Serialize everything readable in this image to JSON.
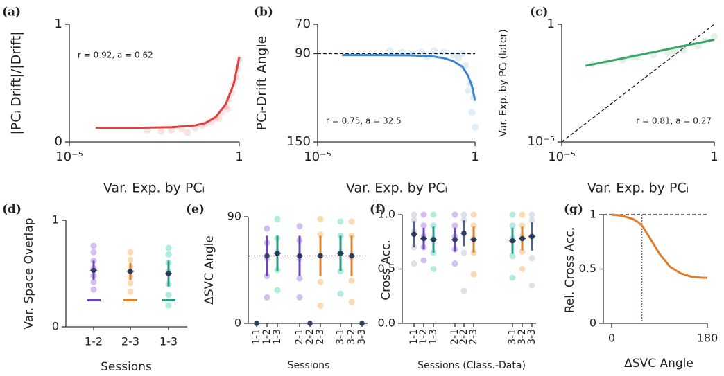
{
  "chart_data": [
    {
      "type": "scatter-fit",
      "panel": "(a)",
      "ylabel": "|PCᵢ Drift|/|Drift|",
      "xlabel": "Var. Exp. by PCᵢ",
      "annotation": "r = 0.92, a = 0.62",
      "color": "#e0403f",
      "xscale": "log",
      "xlim": [
        1e-05,
        1
      ],
      "xticks": [
        {
          "value": 1e-05,
          "label": "10⁻⁵"
        },
        1
      ],
      "ylim": [
        0,
        1
      ],
      "yticks": [
        0,
        1
      ],
      "points": {
        "x": [
          0.002,
          0.005,
          0.01,
          0.02,
          0.05,
          0.08,
          0.1,
          0.15,
          0.2,
          0.3,
          0.4,
          0.5,
          0.6,
          0.7,
          0.8,
          0.9,
          1,
          0.03,
          0.25,
          0.45
        ],
        "y": [
          0.1,
          0.09,
          0.1,
          0.11,
          0.12,
          0.14,
          0.15,
          0.17,
          0.2,
          0.25,
          0.3,
          0.36,
          0.42,
          0.5,
          0.55,
          0.62,
          0.7,
          0.08,
          0.2,
          0.28
        ]
      },
      "fit": {
        "x": [
          6e-05,
          0.001,
          0.01,
          0.05,
          0.1,
          0.2,
          0.4,
          0.7,
          1
        ],
        "y": [
          0.12,
          0.12,
          0.125,
          0.14,
          0.16,
          0.21,
          0.32,
          0.5,
          0.72
        ]
      }
    },
    {
      "type": "scatter-fit",
      "panel": "(b)",
      "ylabel": "PCᵢ-Drift Angle",
      "xlabel": "Var. Exp. by PCᵢ",
      "annotation": "r = 0.75, a = 32.5",
      "color": "#3a85d0",
      "xscale": "log",
      "xlim": [
        1e-05,
        1
      ],
      "xticks": [
        {
          "value": 1e-05,
          "label": "10⁻⁵"
        },
        1
      ],
      "ylim": [
        150,
        70
      ],
      "yticks": [
        70,
        90,
        150
      ],
      "reference_line": 90,
      "points": {
        "x": [
          0.002,
          0.005,
          0.01,
          0.02,
          0.05,
          0.1,
          0.2,
          0.3,
          0.5,
          0.7,
          0.9,
          1,
          0.8,
          0.6,
          0.4,
          0.03
        ],
        "y": [
          88,
          89,
          90,
          89,
          88,
          89,
          91,
          93,
          98,
          110,
          120,
          140,
          130,
          115,
          90,
          92
        ]
      },
      "fit": {
        "x": [
          6e-05,
          0.001,
          0.01,
          0.05,
          0.1,
          0.2,
          0.4,
          0.6,
          0.8,
          1
        ],
        "y": [
          91,
          91,
          91.2,
          92,
          93,
          95,
          99,
          105,
          112,
          122
        ]
      }
    },
    {
      "type": "scatter-fit",
      "panel": "(c)",
      "ylabel": "Var. Exp. by PCᵢ (later)",
      "xlabel": "Var. Exp. by PCᵢ",
      "annotation": "r = 0.81, a = 0.27",
      "color": "#3aa66a",
      "xscale": "log",
      "yscale": "log",
      "diagonal": true,
      "xlim": [
        1e-05,
        1
      ],
      "xticks": [
        {
          "value": 1e-05,
          "label": "10⁻⁵"
        },
        1
      ],
      "ylim": [
        1e-05,
        1
      ],
      "yticks": [
        {
          "value": 1e-05,
          "label": "10⁻⁵"
        },
        1
      ],
      "points": {
        "x": [
          0.0001,
          0.0003,
          0.001,
          0.003,
          0.01,
          0.03,
          0.1,
          0.3,
          1,
          0.5,
          0.05,
          0.002
        ],
        "y": [
          0.02,
          0.025,
          0.03,
          0.04,
          0.05,
          0.06,
          0.08,
          0.12,
          0.3,
          0.2,
          0.07,
          0.04
        ]
      },
      "fit": {
        "x": [
          6e-05,
          1
        ],
        "y": [
          0.017,
          0.22
        ]
      }
    },
    {
      "type": "errorbar",
      "panel": "(d)",
      "ylabel": "Var. Space Overlap",
      "xlabel": "Sessions",
      "ylim": [
        0,
        1
      ],
      "yticks": [
        0,
        1
      ],
      "categories": [
        "1-2",
        "2-3",
        "1-3"
      ],
      "values": [
        0.53,
        0.52,
        0.5
      ],
      "errors": [
        0.09,
        0.08,
        0.12
      ],
      "floor": [
        0.25,
        0.25,
        0.25
      ],
      "colors": [
        "#a77ee6",
        "#f5b86a",
        "#5fdcc0"
      ],
      "line_colors": [
        "#6a44b8",
        "#d9822b",
        "#2a9a84"
      ],
      "points": [
        [
          0.35,
          0.42,
          0.48,
          0.55,
          0.62,
          0.7,
          0.76
        ],
        [
          0.33,
          0.41,
          0.47,
          0.56,
          0.63,
          0.7
        ],
        [
          0.2,
          0.3,
          0.4,
          0.52,
          0.6,
          0.68,
          0.74
        ]
      ]
    },
    {
      "type": "errorbar",
      "panel": "(e)",
      "ylabel": "ΔSVC Angle",
      "xlabel": "Sessions",
      "ylim": [
        0,
        90
      ],
      "yticks": [
        0,
        90
      ],
      "reference_line": 57,
      "categories": [
        "1-1",
        "1-2",
        "1-3",
        "2-1",
        "2-2",
        "2-3",
        "3-1",
        "3-2",
        "3-3"
      ],
      "values": [
        0,
        57,
        59,
        57,
        0,
        57,
        59,
        57,
        0
      ],
      "errors": [
        0,
        17,
        15,
        17,
        0,
        17,
        15,
        17,
        0
      ],
      "colors": [
        "#2e3a5c",
        "#a77ee6",
        "#5fdcc0",
        "#a77ee6",
        "#2e3a5c",
        "#f5b86a",
        "#5fdcc0",
        "#f5b86a",
        "#2e3a5c"
      ],
      "line_colors": [
        "#2e3a5c",
        "#6a44b8",
        "#2a9a84",
        "#6a44b8",
        "#2e3a5c",
        "#d9822b",
        "#2a9a84",
        "#d9822b",
        "#2e3a5c"
      ],
      "points": [
        null,
        [
          22,
          40,
          55,
          68,
          80
        ],
        [
          28,
          45,
          60,
          72,
          88
        ],
        [
          22,
          38,
          55,
          70,
          82
        ],
        null,
        [
          15,
          35,
          57,
          75,
          88
        ],
        [
          25,
          44,
          60,
          74,
          86
        ],
        [
          18,
          36,
          56,
          74,
          86
        ],
        null
      ]
    },
    {
      "type": "errorbar",
      "panel": "(f)",
      "ylabel": "Cross Acc.",
      "xlabel": "Sessions (Class.-Data)",
      "ylim": [
        0,
        1
      ],
      "yticks": [
        {
          "value": 0,
          "label": "0.0"
        },
        0.5,
        {
          "value": 1,
          "label": "1.0"
        }
      ],
      "categories": [
        "1-1",
        "1-2",
        "1-3",
        "2-1",
        "2-2",
        "2-3",
        "3-1",
        "3-2",
        "3-3"
      ],
      "values": [
        0.82,
        0.78,
        0.77,
        0.77,
        0.83,
        0.77,
        0.76,
        0.78,
        0.8
      ],
      "errors": [
        0.12,
        0.1,
        0.12,
        0.11,
        0.12,
        0.12,
        0.12,
        0.11,
        0.13
      ],
      "colors": [
        "#b8c2d4",
        "#a77ee6",
        "#5fdcc0",
        "#a77ee6",
        "#b8c2d4",
        "#f5b86a",
        "#5fdcc0",
        "#f5b86a",
        "#b8c2d4"
      ],
      "line_colors": [
        "#56657f",
        "#6a44b8",
        "#2a9a84",
        "#6a44b8",
        "#56657f",
        "#d9822b",
        "#2a9a84",
        "#d9822b",
        "#56657f"
      ],
      "points": [
        [
          0.55,
          0.7,
          0.85,
          0.95,
          1
        ],
        [
          0.58,
          0.7,
          0.8,
          0.9,
          1
        ],
        [
          0.5,
          0.65,
          0.78,
          0.9,
          1
        ],
        [
          0.55,
          0.68,
          0.8,
          0.9,
          1
        ],
        [
          0.3,
          0.65,
          0.82,
          0.95,
          1
        ],
        [
          0.45,
          0.65,
          0.78,
          0.9,
          1
        ],
        [
          0.42,
          0.62,
          0.78,
          0.9,
          1
        ],
        [
          0.5,
          0.66,
          0.8,
          0.9,
          1
        ],
        [
          0.35,
          0.6,
          0.8,
          0.95,
          1
        ]
      ]
    },
    {
      "type": "line",
      "panel": "(g)",
      "ylabel": "Rel. Cross Acc.",
      "xlabel": "ΔSVC Angle",
      "color": "#e07b28",
      "xlim": [
        0,
        180
      ],
      "xticks": [
        0,
        180
      ],
      "ylim": [
        0,
        1
      ],
      "yticks": [
        0,
        0.5,
        1
      ],
      "reference_line": 1,
      "vline": 57,
      "x": [
        0,
        20,
        40,
        50,
        57,
        70,
        90,
        110,
        130,
        150,
        170,
        180
      ],
      "values": [
        1,
        0.99,
        0.96,
        0.93,
        0.9,
        0.8,
        0.64,
        0.52,
        0.46,
        0.43,
        0.42,
        0.42
      ]
    }
  ]
}
